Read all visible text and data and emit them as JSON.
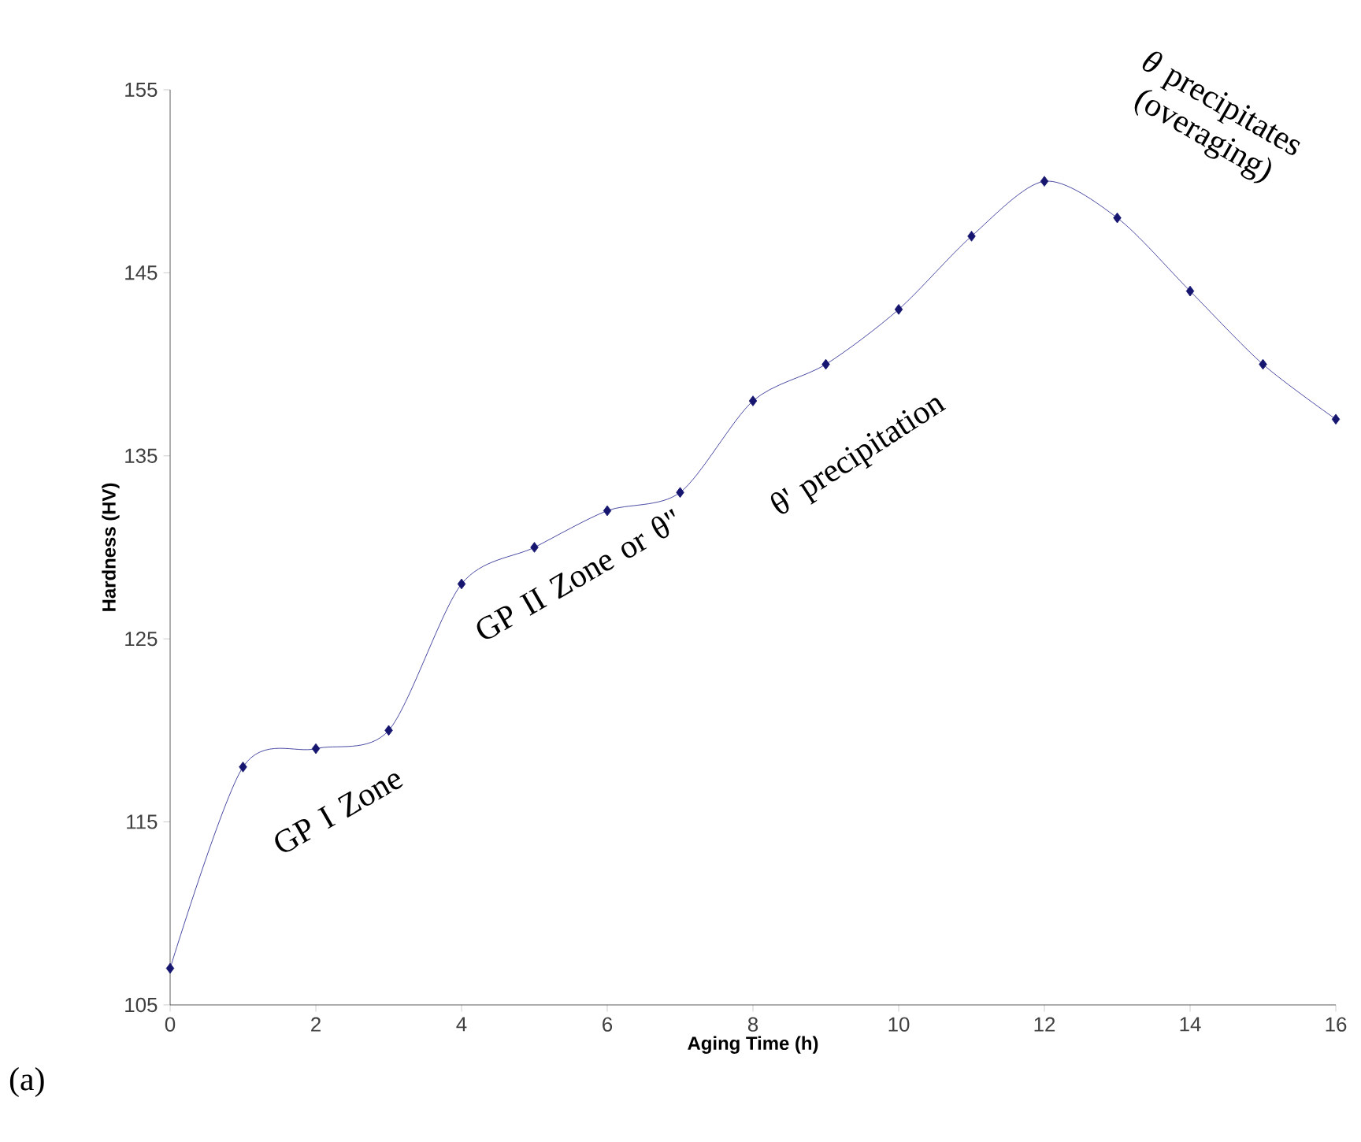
{
  "chart_data": {
    "type": "line",
    "xlabel": "Aging Time (h)",
    "ylabel": "Hardness (HV)",
    "x": [
      0,
      1,
      2,
      3,
      4,
      5,
      6,
      7,
      8,
      9,
      10,
      11,
      12,
      13,
      14,
      15,
      16
    ],
    "series": [
      {
        "color": "#1c1c8c",
        "values": [
          107,
          118,
          119,
          120,
          128,
          130,
          132,
          133,
          138,
          140,
          143,
          147,
          150,
          148,
          144,
          140,
          137
        ]
      }
    ],
    "xlim": [
      0,
      16
    ],
    "ylim": [
      105,
      155
    ],
    "xticks": [
      0,
      2,
      4,
      6,
      8,
      10,
      12,
      14,
      16
    ],
    "yticks": [
      105,
      115,
      125,
      135,
      145,
      155
    ],
    "marker": "diamond",
    "line_style": "solid",
    "grid": false,
    "annotations": [
      "GP I Zone",
      "GP II Zone or θ\"",
      "θ' precipitation",
      "*θ* precipitates (overaging)",
      "(a)"
    ]
  }
}
